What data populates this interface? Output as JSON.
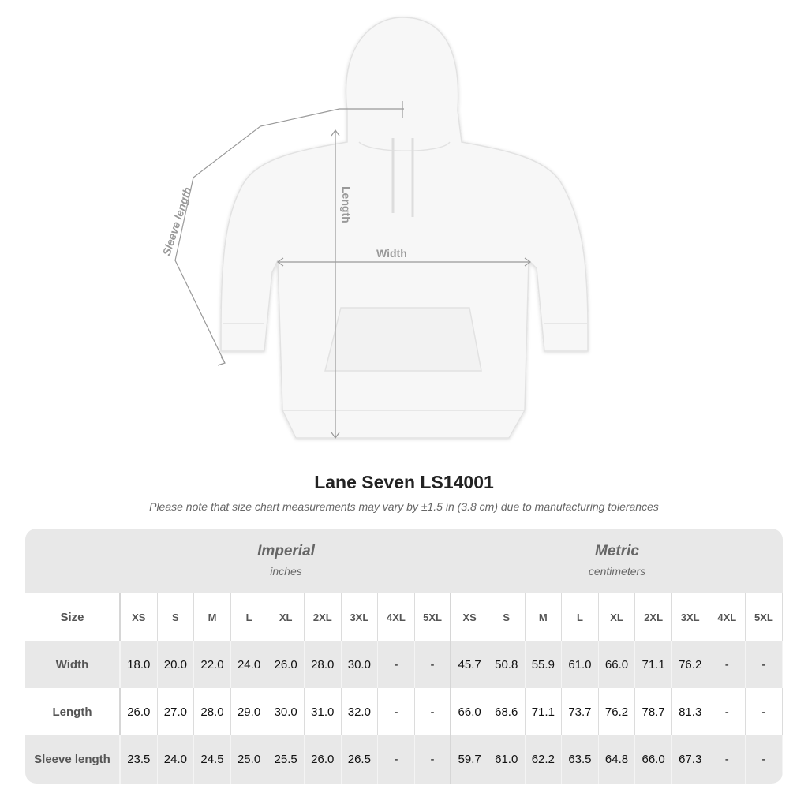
{
  "diagram": {
    "labels": {
      "sleeve": "Sleeve length",
      "length": "Length",
      "width": "Width"
    }
  },
  "title": "Lane Seven LS14001",
  "note": "Please note that size chart measurements may vary by ±1.5 in (3.8 cm) due to manufacturing tolerances",
  "table": {
    "imperial": {
      "name": "Imperial",
      "unit": "inches"
    },
    "metric": {
      "name": "Metric",
      "unit": "centimeters"
    },
    "size_label": "Size",
    "sizes": [
      "XS",
      "S",
      "M",
      "L",
      "XL",
      "2XL",
      "3XL",
      "4XL",
      "5XL"
    ],
    "rows": [
      {
        "label": "Width",
        "imperial": [
          "18.0",
          "20.0",
          "22.0",
          "24.0",
          "26.0",
          "28.0",
          "30.0",
          "-",
          "-"
        ],
        "metric": [
          "45.7",
          "50.8",
          "55.9",
          "61.0",
          "66.0",
          "71.1",
          "76.2",
          "-",
          "-"
        ]
      },
      {
        "label": "Length",
        "imperial": [
          "26.0",
          "27.0",
          "28.0",
          "29.0",
          "30.0",
          "31.0",
          "32.0",
          "-",
          "-"
        ],
        "metric": [
          "66.0",
          "68.6",
          "71.1",
          "73.7",
          "76.2",
          "78.7",
          "81.3",
          "-",
          "-"
        ]
      },
      {
        "label": "Sleeve length",
        "imperial": [
          "23.5",
          "24.0",
          "24.5",
          "25.0",
          "25.5",
          "26.0",
          "26.5",
          "-",
          "-"
        ],
        "metric": [
          "59.7",
          "61.0",
          "62.2",
          "63.5",
          "64.8",
          "66.0",
          "67.3",
          "-",
          "-"
        ]
      }
    ]
  }
}
